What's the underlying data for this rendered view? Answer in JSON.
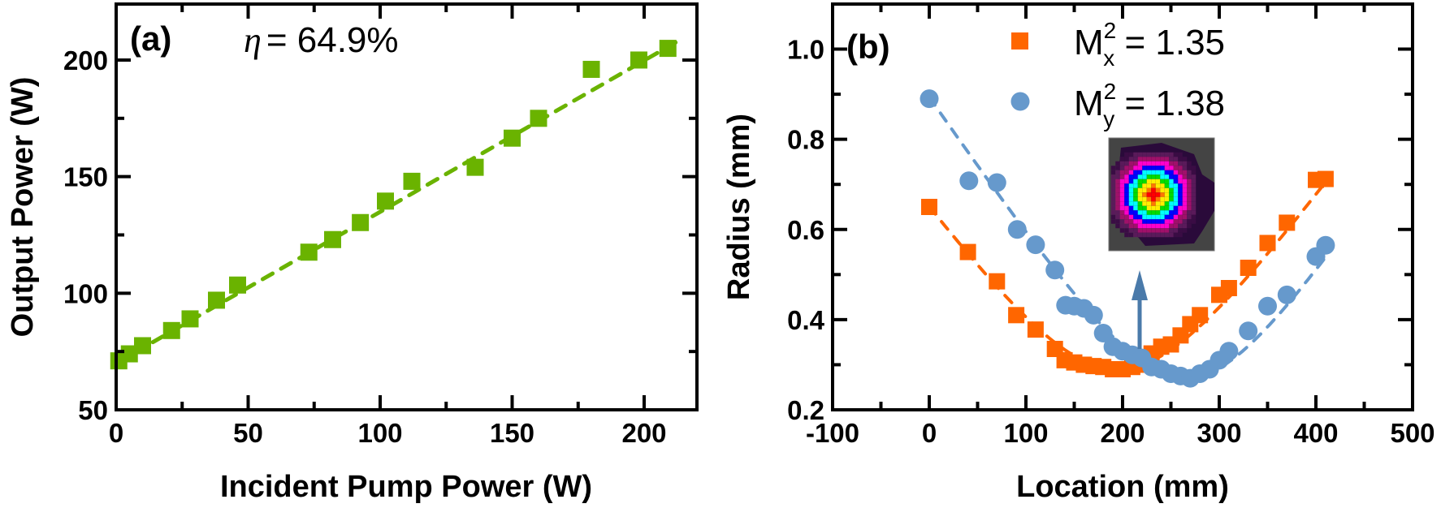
{
  "chart_data": [
    {
      "type": "scatter",
      "panel_label": "(a)",
      "annotation": "= 64.9%",
      "annotation_symbol": "η",
      "xlabel": "Incident Pump Power (W)",
      "ylabel": "Output Power (W)",
      "xlim": [
        0,
        220
      ],
      "ylim": [
        50,
        224
      ],
      "xticks": [
        0,
        50,
        100,
        150,
        200
      ],
      "yticks": [
        50,
        100,
        150,
        200
      ],
      "grid": false,
      "marker": "square",
      "color": "#6ab300",
      "x": [
        1,
        5,
        10,
        21,
        28,
        38,
        46,
        73,
        82,
        92.5,
        102,
        112,
        136,
        150,
        160,
        180,
        198,
        209
      ],
      "y": [
        71,
        74,
        77.5,
        84,
        89,
        97,
        103.5,
        117.6,
        123,
        130.3,
        139.5,
        148,
        154,
        166.5,
        175,
        196,
        200,
        205
      ],
      "fit": {
        "style": "dashed",
        "slope": 0.649,
        "intercept": 70,
        "x_range": [
          0,
          212
        ]
      }
    },
    {
      "type": "scatter",
      "panel_label": "(b)",
      "xlabel": "Location (mm)",
      "ylabel": "Radius (mm)",
      "xlim": [
        -100,
        500
      ],
      "ylim": [
        0.2,
        1.1
      ],
      "xticks": [
        -100,
        0,
        100,
        200,
        300,
        400,
        500
      ],
      "ytick_labels": [
        "0.2",
        "0.4",
        "0.6",
        "0.8",
        "1.0"
      ],
      "grid": false,
      "legend_placement": "top-center",
      "inset": "beam profile image",
      "series": [
        {
          "legend_main": "M",
          "legend_sup": "2",
          "legend_sub": "x",
          "legend_value": " = 1.35",
          "marker": "square",
          "color": "#ff6600",
          "x": [
            0,
            40,
            70,
            90,
            110,
            130,
            140,
            150,
            160,
            170,
            180,
            190,
            200,
            210,
            220,
            230,
            240,
            250,
            260,
            270,
            280,
            300,
            310,
            330,
            350,
            370,
            400,
            410
          ],
          "y": [
            0.65,
            0.55,
            0.485,
            0.41,
            0.378,
            0.335,
            0.31,
            0.305,
            0.3,
            0.297,
            0.295,
            0.29,
            0.29,
            0.295,
            0.3,
            0.325,
            0.34,
            0.345,
            0.365,
            0.39,
            0.41,
            0.455,
            0.47,
            0.515,
            0.57,
            0.615,
            0.71,
            0.712
          ],
          "fit": {
            "style": "dashed",
            "w0": 0.29,
            "z0": 195,
            "zR": 97,
            "x_range": [
              0,
              410
            ]
          }
        },
        {
          "legend_main": "M",
          "legend_sup": "2",
          "legend_sub": "y",
          "legend_value": " = 1.38",
          "marker": "circle",
          "color": "#6699cc",
          "x": [
            0,
            41,
            70,
            91,
            110,
            130,
            141,
            150,
            160,
            170,
            180,
            190,
            200,
            210,
            220,
            230,
            240,
            250,
            260,
            270,
            280,
            290,
            300,
            310,
            330,
            350,
            370,
            400,
            410
          ],
          "y": [
            0.89,
            0.708,
            0.704,
            0.6,
            0.566,
            0.51,
            0.432,
            0.43,
            0.425,
            0.41,
            0.37,
            0.34,
            0.33,
            0.322,
            0.315,
            0.295,
            0.29,
            0.28,
            0.275,
            0.27,
            0.28,
            0.29,
            0.31,
            0.33,
            0.375,
            0.43,
            0.455,
            0.54,
            0.565
          ],
          "fit": {
            "style": "dashed",
            "w0": 0.27,
            "z0": 265,
            "zR": 84,
            "x_range": [
              0,
              410
            ]
          }
        }
      ]
    }
  ]
}
